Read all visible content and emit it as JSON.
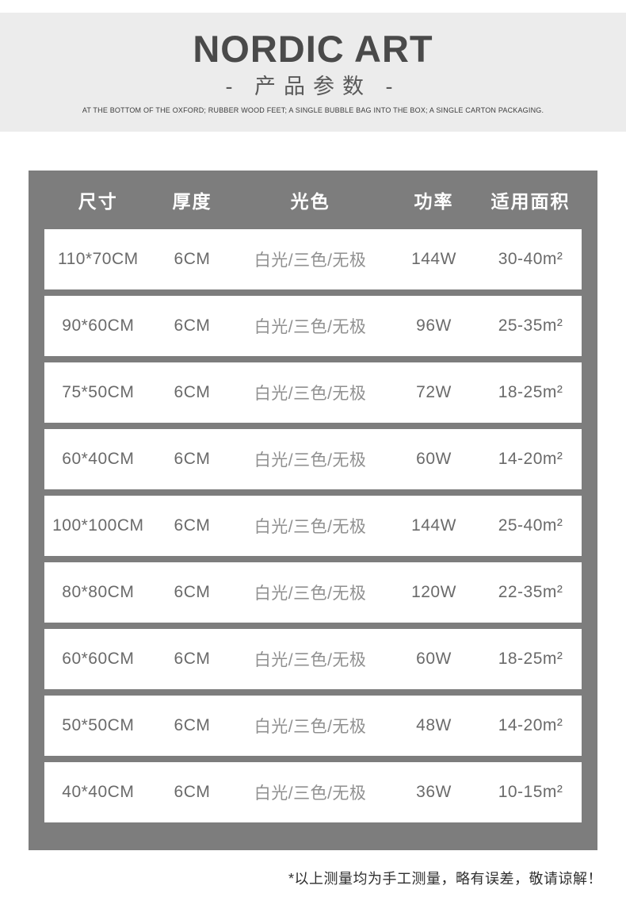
{
  "banner": {
    "title": "NORDIC ART",
    "subtitle": "- 产品参数 -",
    "caption": "AT THE BOTTOM OF THE OXFORD; RUBBER WOOD FEET; A SINGLE BUBBLE BAG INTO THE BOX; A SINGLE CARTON PACKAGING."
  },
  "table": {
    "columns": [
      "尺寸",
      "厚度",
      "光色",
      "功率",
      "适用面积"
    ],
    "rows": [
      [
        "110*70CM",
        "6CM",
        "白光/三色/无极",
        "144W",
        "30-40m²"
      ],
      [
        "90*60CM",
        "6CM",
        "白光/三色/无极",
        "96W",
        "25-35m²"
      ],
      [
        "75*50CM",
        "6CM",
        "白光/三色/无极",
        "72W",
        "18-25m²"
      ],
      [
        "60*40CM",
        "6CM",
        "白光/三色/无极",
        "60W",
        "14-20m²"
      ],
      [
        "100*100CM",
        "6CM",
        "白光/三色/无极",
        "144W",
        "25-40m²"
      ],
      [
        "80*80CM",
        "6CM",
        "白光/三色/无极",
        "120W",
        "22-35m²"
      ],
      [
        "60*60CM",
        "6CM",
        "白光/三色/无极",
        "60W",
        "18-25m²"
      ],
      [
        "50*50CM",
        "6CM",
        "白光/三色/无极",
        "48W",
        "14-20m²"
      ],
      [
        "40*40CM",
        "6CM",
        "白光/三色/无极",
        "36W",
        "10-15m²"
      ]
    ]
  },
  "footer": {
    "note": "*以上测量均为手工测量，略有误差，敬请谅解！"
  },
  "colors": {
    "banner_bg": "#ececec",
    "table_bg": "#7d7d7d",
    "row_bg": "#ffffff",
    "header_text": "#ffffff",
    "title_text": "#4a4a4a",
    "row_text": "#6a6a6a",
    "light_column_text": "#909090",
    "note_text": "#2f2f2f"
  }
}
